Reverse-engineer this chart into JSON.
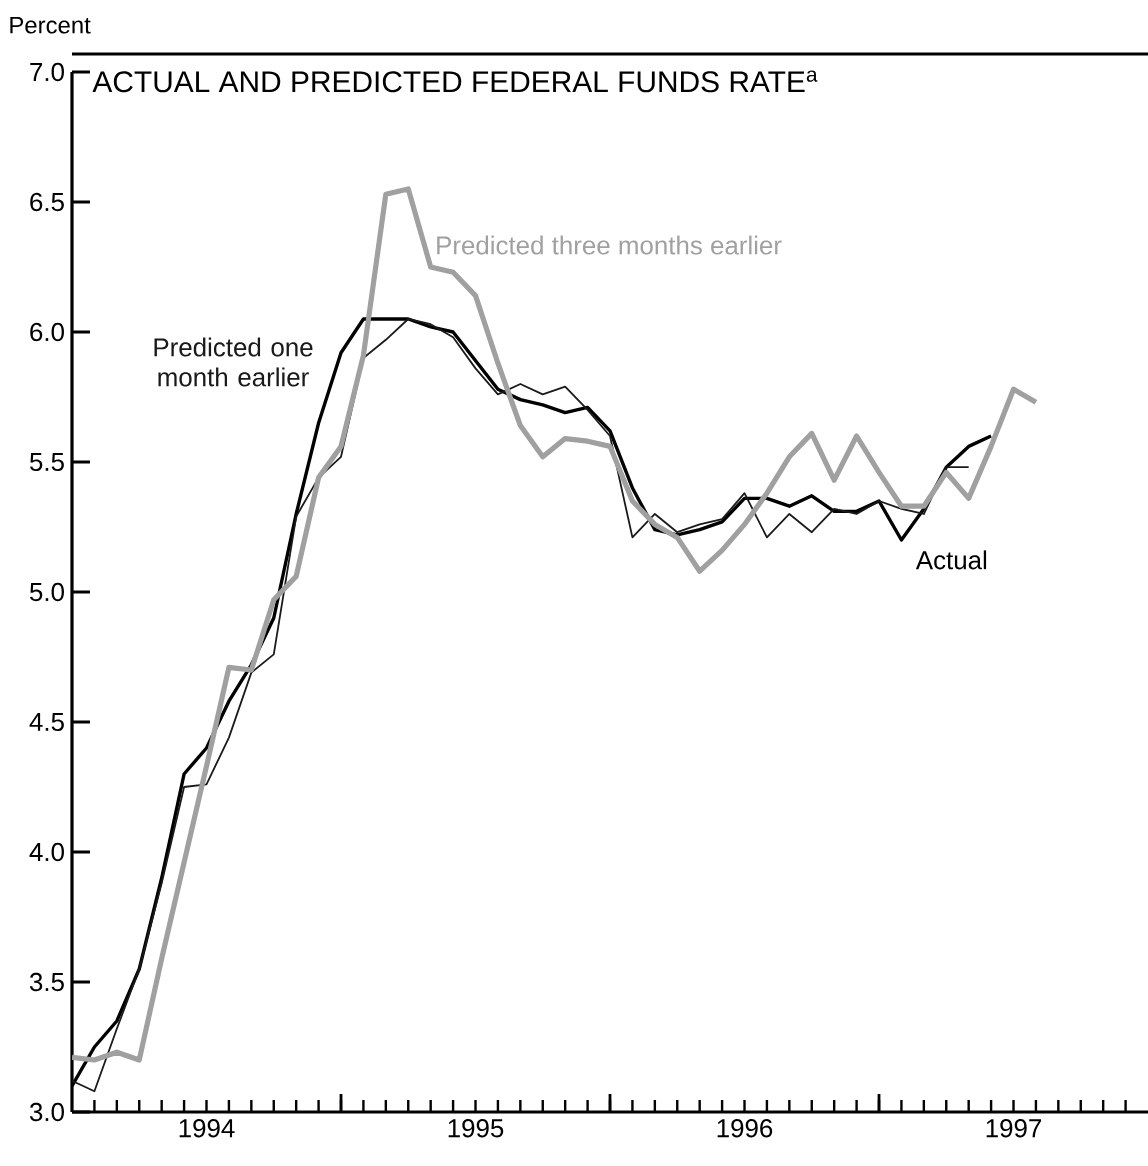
{
  "chart_data": {
    "type": "line",
    "title": "ACTUAL AND PREDICTED FEDERAL FUNDS RATE$^{a}$",
    "ylabel": "Percent",
    "xlim": [
      "1994-01",
      "1998-01"
    ],
    "xticks": [
      {
        "value": "1994-07",
        "label": "1994"
      },
      {
        "value": "1995-07",
        "label": "1995"
      },
      {
        "value": "1996-07",
        "label": "1996"
      },
      {
        "value": "1997-07",
        "label": "1997"
      },
      {
        "value": "1995-01",
        "label": null
      },
      {
        "value": "1996-01",
        "label": null
      },
      {
        "value": "1997-01",
        "label": null
      }
    ],
    "ylim": [
      3,
      7
    ],
    "yticks": [
      {
        "value": 3,
        "label": "3.0"
      },
      {
        "value": 3.5,
        "label": "3.5"
      },
      {
        "value": 4,
        "label": "4.0"
      },
      {
        "value": 4.5,
        "label": "4.5"
      },
      {
        "value": 5,
        "label": "5.0"
      },
      {
        "value": 5.5,
        "label": "5.5"
      },
      {
        "value": 6,
        "label": "6.0"
      },
      {
        "value": 6.5,
        "label": "6.5"
      },
      {
        "value": 7,
        "label": "7.0"
      }
    ],
    "grid": false,
    "legend": false,
    "marker": "none",
    "line_style": "solid",
    "series": [
      {
        "name": "Actual",
        "color": "#000000",
        "x": [
          "1994-01",
          "1994-02",
          "1994-03",
          "1994-04",
          "1994-05",
          "1994-06",
          "1994-07",
          "1994-08",
          "1994-09",
          "1994-10",
          "1994-11",
          "1994-12",
          "1995-01",
          "1995-02",
          "1995-03",
          "1995-04",
          "1995-05",
          "1995-06",
          "1995-07",
          "1995-08",
          "1995-09",
          "1995-10",
          "1995-11",
          "1995-12",
          "1996-01",
          "1996-02",
          "1996-03",
          "1996-04",
          "1996-05",
          "1996-06",
          "1996-07",
          "1996-08",
          "1996-09",
          "1996-10",
          "1996-11",
          "1996-12",
          "1997-01",
          "1997-02",
          "1997-03",
          "1997-04",
          "1997-05",
          "1997-06"
        ],
        "values": [
          3.1,
          3.25,
          3.35,
          3.55,
          3.9,
          4.3,
          4.4,
          4.58,
          4.72,
          4.9,
          5.3,
          5.65,
          5.92,
          6.05,
          6.05,
          6.05,
          6.02,
          6.0,
          5.89,
          5.78,
          5.74,
          5.72,
          5.69,
          5.71,
          5.62,
          5.4,
          5.24,
          5.22,
          5.24,
          5.27,
          5.36,
          5.36,
          5.33,
          5.37,
          5.31,
          5.31,
          5.35,
          5.2,
          5.32,
          5.48,
          5.56,
          5.6
        ]
      },
      {
        "name": "Predicted one month earlier",
        "color": "#1a1a1a",
        "x": [
          "1994-01",
          "1994-02",
          "1994-03",
          "1994-04",
          "1994-05",
          "1994-06",
          "1994-07",
          "1994-08",
          "1994-09",
          "1994-10",
          "1994-11",
          "1994-12",
          "1995-01",
          "1995-02",
          "1995-03",
          "1995-04",
          "1995-05",
          "1995-06",
          "1995-07",
          "1995-08",
          "1995-09",
          "1995-10",
          "1995-11",
          "1995-12",
          "1996-01",
          "1996-02",
          "1996-03",
          "1996-04",
          "1996-05",
          "1996-06",
          "1996-07",
          "1996-08",
          "1996-09",
          "1996-10",
          "1996-11",
          "1996-12",
          "1997-01",
          "1997-02",
          "1997-03",
          "1997-04",
          "1997-05"
        ],
        "values": [
          3.12,
          3.08,
          3.32,
          3.55,
          3.88,
          4.25,
          4.26,
          4.44,
          4.69,
          4.76,
          5.29,
          5.44,
          5.52,
          5.9,
          5.97,
          6.05,
          6.03,
          5.98,
          5.86,
          5.76,
          5.8,
          5.76,
          5.79,
          5.7,
          5.6,
          5.21,
          5.3,
          5.23,
          5.26,
          5.28,
          5.38,
          5.21,
          5.3,
          5.23,
          5.32,
          5.3,
          5.35,
          5.32,
          5.3,
          5.48,
          5.48
        ]
      },
      {
        "name": "Predicted three months earlier",
        "color": "#a0a0a0",
        "x": [
          "1994-01",
          "1994-02",
          "1994-03",
          "1994-04",
          "1994-05",
          "1994-06",
          "1994-07",
          "1994-08",
          "1994-09",
          "1994-10",
          "1994-11",
          "1994-12",
          "1995-01",
          "1995-02",
          "1995-03",
          "1995-04",
          "1995-05",
          "1995-06",
          "1995-07",
          "1995-08",
          "1995-09",
          "1995-10",
          "1995-11",
          "1995-12",
          "1996-01",
          "1996-02",
          "1996-03",
          "1996-04",
          "1996-05",
          "1996-06",
          "1996-07",
          "1996-08",
          "1996-09",
          "1996-10",
          "1996-11",
          "1996-12",
          "1997-01",
          "1997-02",
          "1997-03",
          "1997-04",
          "1997-05",
          "1997-06",
          "1997-07",
          "1997-08"
        ],
        "values": [
          3.21,
          3.2,
          3.23,
          3.2,
          3.59,
          3.96,
          4.33,
          4.71,
          4.7,
          4.97,
          5.06,
          5.44,
          5.56,
          5.91,
          6.53,
          6.55,
          6.25,
          6.23,
          6.14,
          5.88,
          5.64,
          5.52,
          5.59,
          5.58,
          5.56,
          5.35,
          5.26,
          5.21,
          5.08,
          5.16,
          5.26,
          5.38,
          5.52,
          5.61,
          5.43,
          5.6,
          5.46,
          5.33,
          5.33,
          5.46,
          5.36,
          5.56,
          5.78,
          5.73
        ]
      }
    ]
  }
}
